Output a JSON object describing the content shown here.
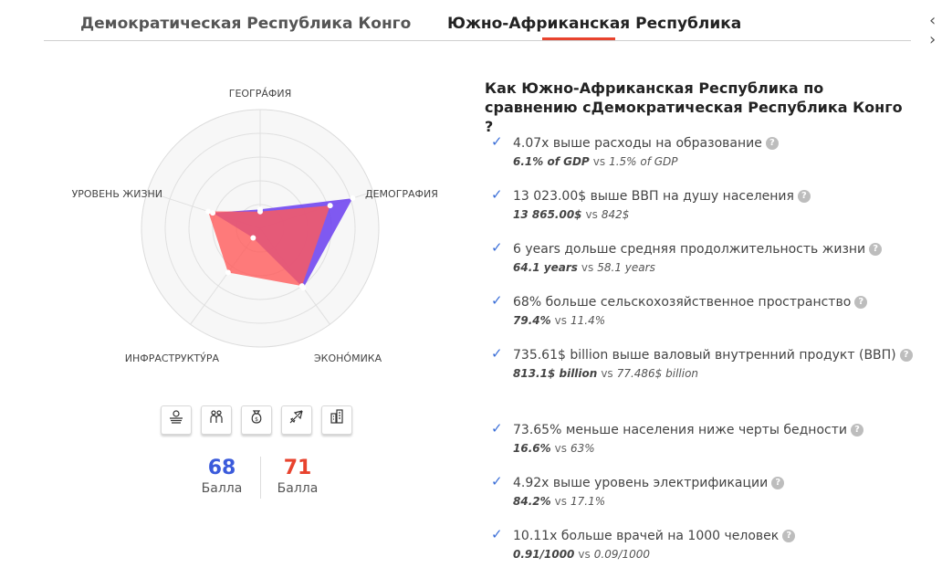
{
  "tabs": {
    "left": "Демократическая Республика Конго",
    "right": "Южно-Африканская Республика",
    "prev": "‹",
    "next": "›"
  },
  "radar": {
    "axes": [
      "ГЕОГРА́ФИЯ",
      "ДЕМОГРАФИЯ",
      "ЭКОНО́МИКА",
      "ИНФРАСТРУКТУ́РА",
      "УРОВЕНЬ ЖИЗНИ"
    ],
    "series": [
      {
        "color": "#6a3df0",
        "values": [
          0.16,
          0.82,
          0.62,
          0.1,
          0.42
        ]
      },
      {
        "color": "#ff5a5a",
        "values": [
          0.14,
          0.62,
          0.6,
          0.46,
          0.46
        ]
      }
    ]
  },
  "icons": [
    "landscape-icon",
    "people-icon",
    "money-bag-icon",
    "airplane-icon",
    "buildings-icon"
  ],
  "scores": {
    "left": {
      "value": "68",
      "label": "Балла",
      "color": "#3b5bdb"
    },
    "right": {
      "value": "71",
      "label": "Балла",
      "color": "#e8432e"
    }
  },
  "comparison": {
    "heading": "Как Южно-Африканская Республика по сравнению сДемократическая Республика Конго ?",
    "facts": [
      {
        "title": "4.07x выше расходы на образование",
        "a": "6.1% of GDP",
        "vs": "vs",
        "b": "1.5% of GDP"
      },
      {
        "title": "13 023.00$ выше ВВП на душу населения",
        "a": "13 865.00$",
        "vs": "vs",
        "b": "842$"
      },
      {
        "title": "6 years дольше средняя продолжительность жизни",
        "a": "64.1 years",
        "vs": "vs",
        "b": "58.1 years"
      },
      {
        "title": "68% больше сельскохозяйственное пространство",
        "a": "79.4%",
        "vs": "vs",
        "b": "11.4%"
      },
      {
        "title": "735.61$ billion выше валовый внутренний продукт (ВВП)",
        "a": "813.1$ billion",
        "vs": "vs",
        "b": "77.486$ billion"
      },
      {
        "title": "73.65% меньше населения ниже черты бедности",
        "a": "16.6%",
        "vs": "vs",
        "b": "63%"
      },
      {
        "title": "4.92x выше уровень электрификации",
        "a": "84.2%",
        "vs": "vs",
        "b": "17.1%"
      },
      {
        "title": "10.11x больше врачей на 1000 человек",
        "a": "0.91/1000",
        "vs": "vs",
        "b": "0.09/1000"
      }
    ]
  }
}
